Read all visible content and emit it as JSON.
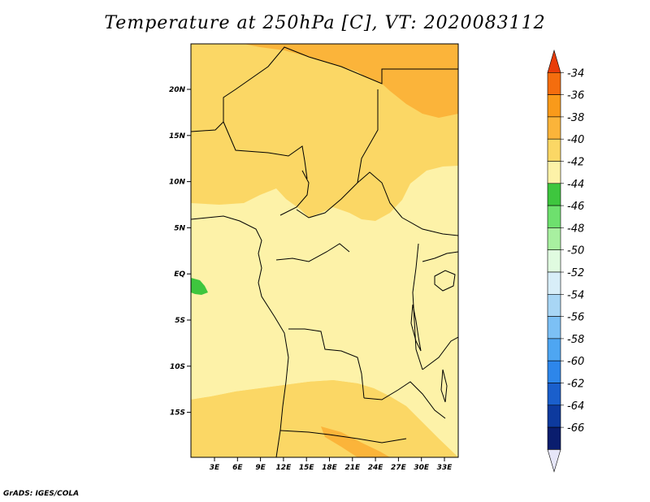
{
  "title": "Temperature at 250hPa [C], VT: 2020083112",
  "credit": "GrADS: IGES/COLA",
  "map": {
    "lat_labels": [
      "20N",
      "15N",
      "10N",
      "5N",
      "EQ",
      "5S",
      "10S",
      "15S"
    ],
    "lon_labels": [
      "3E",
      "6E",
      "9E",
      "12E",
      "15E",
      "18E",
      "21E",
      "24E",
      "27E",
      "30E",
      "33E"
    ]
  },
  "colorbar": {
    "levels": [
      "-34",
      "-36",
      "-38",
      "-40",
      "-42",
      "-44",
      "-46",
      "-48",
      "-50",
      "-52",
      "-54",
      "-56",
      "-58",
      "-60",
      "-62",
      "-64",
      "-66"
    ],
    "colors": [
      "#e83c0a",
      "#f46d0e",
      "#f99a1a",
      "#fbb43a",
      "#fbd765",
      "#fdf2a8",
      "#3ec63e",
      "#6ee06e",
      "#a8f0a0",
      "#e0fbe0",
      "#d8eef8",
      "#a8d6f5",
      "#7cc0f5",
      "#4ea6f2",
      "#2d86ea",
      "#1a5fcc",
      "#0d3a9e",
      "#0a1d6e",
      "#e6e6f8"
    ]
  }
}
